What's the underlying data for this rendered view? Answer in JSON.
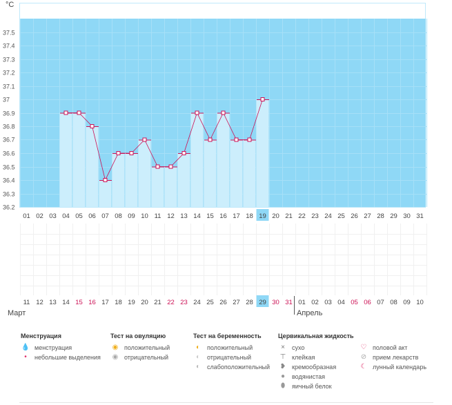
{
  "chart_data": {
    "type": "line+bar",
    "unit_label": "°C",
    "ylim": [
      36.2,
      37.6
    ],
    "yticks": [
      "37.5",
      "37.4",
      "37.3",
      "37.2",
      "37.1",
      "37",
      "36.9",
      "36.8",
      "36.7",
      "36.6",
      "36.5",
      "36.4",
      "36.3",
      "36.2"
    ],
    "cycle_days": [
      "01",
      "02",
      "03",
      "04",
      "05",
      "06",
      "07",
      "08",
      "09",
      "10",
      "11",
      "12",
      "13",
      "14",
      "15",
      "16",
      "17",
      "18",
      "19",
      "20",
      "21",
      "22",
      "23",
      "24",
      "25",
      "26",
      "27",
      "28",
      "29",
      "30",
      "31"
    ],
    "temperatures": [
      null,
      null,
      null,
      36.9,
      36.9,
      36.8,
      36.4,
      36.6,
      36.6,
      36.7,
      36.5,
      36.5,
      36.6,
      36.9,
      36.7,
      36.9,
      36.7,
      36.7,
      37.0,
      null,
      null,
      null,
      null,
      null,
      null,
      null,
      null,
      null,
      null,
      null,
      null
    ],
    "highlighted_cycle_day": "19",
    "calendar_dates": [
      "11",
      "12",
      "13",
      "14",
      "15",
      "16",
      "17",
      "18",
      "19",
      "20",
      "21",
      "22",
      "23",
      "24",
      "25",
      "26",
      "27",
      "28",
      "29",
      "30",
      "31",
      "01",
      "02",
      "03",
      "04",
      "05",
      "06",
      "07",
      "08",
      "09",
      "10"
    ],
    "red_dates": [
      "15",
      "16",
      "22",
      "23",
      "30",
      "31",
      "05",
      "06"
    ],
    "highlighted_date": "29",
    "months": [
      "Март",
      "Апрель"
    ],
    "colors": {
      "background": "#8fd8f6",
      "bars": "#cceefc",
      "line": "#cc1155",
      "red_date": "#cc1155",
      "highlight": "#8fd8f6"
    }
  },
  "legend": {
    "groups": [
      {
        "title": "Менструация",
        "items": [
          {
            "icon": "drop-big-icon",
            "glyph": "💧",
            "label": "менструация"
          },
          {
            "icon": "drop-small-icon",
            "glyph": "•",
            "label": "небольшие выделения"
          }
        ]
      },
      {
        "title": "Тест на овуляцию",
        "items": [
          {
            "icon": "ovulation-positive-icon",
            "glyph": "◉",
            "label": "положительный"
          },
          {
            "icon": "ovulation-negative-icon",
            "glyph": "◉",
            "label": "отрицательный"
          }
        ]
      },
      {
        "title": "Тест на беременность",
        "items": [
          {
            "icon": "pregnancy-positive-icon",
            "glyph": "◐",
            "label": "положительный"
          },
          {
            "icon": "pregnancy-negative-icon",
            "glyph": "◐",
            "label": "отрицательный"
          },
          {
            "icon": "pregnancy-weak-icon",
            "glyph": "◐",
            "label": "слабоположительный"
          }
        ]
      },
      {
        "title": "Цервикальная жидкость",
        "items": [
          {
            "icon": "dry-icon",
            "glyph": "×",
            "label": "сухо"
          },
          {
            "icon": "sticky-icon",
            "glyph": "⊤",
            "label": "клейкая"
          },
          {
            "icon": "creamy-icon",
            "glyph": "❥",
            "label": "кремообразная"
          },
          {
            "icon": "watery-icon",
            "glyph": "●",
            "label": "водянистая"
          },
          {
            "icon": "egg-white-icon",
            "glyph": "⬮",
            "label": "яичный белок"
          }
        ]
      },
      {
        "title": "",
        "items": [
          {
            "icon": "heart-icon",
            "glyph": "♡",
            "label": "половой акт"
          },
          {
            "icon": "pill-icon",
            "glyph": "⊘",
            "label": "прием лекарств"
          },
          {
            "icon": "moon-icon",
            "glyph": "☾",
            "label": "лунный календарь"
          }
        ]
      }
    ]
  }
}
